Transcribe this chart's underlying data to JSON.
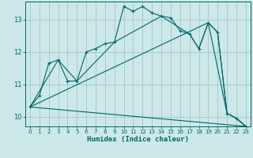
{
  "xlabel": "Humidex (Indice chaleur)",
  "bg_color": "#cce8e8",
  "grid_color": "#aacccc",
  "line_color": "#006666",
  "xlim": [
    -0.5,
    23.5
  ],
  "ylim": [
    9.7,
    13.55
  ],
  "yticks": [
    10,
    11,
    12,
    13
  ],
  "xticks": [
    0,
    1,
    2,
    3,
    4,
    5,
    6,
    7,
    8,
    9,
    10,
    11,
    12,
    13,
    14,
    15,
    16,
    17,
    18,
    19,
    20,
    21,
    22,
    23
  ],
  "curve1_x": [
    0,
    1,
    2,
    3,
    4,
    5,
    6,
    7,
    8,
    9,
    10,
    11,
    12,
    13,
    14,
    15,
    16,
    17,
    18,
    19,
    20,
    21,
    22,
    23
  ],
  "curve1_y": [
    10.3,
    10.65,
    11.65,
    11.75,
    11.1,
    11.1,
    12.0,
    12.1,
    12.25,
    12.3,
    13.4,
    13.25,
    13.4,
    13.2,
    13.1,
    13.05,
    12.65,
    12.55,
    12.1,
    12.9,
    12.6,
    10.1,
    9.95,
    9.7
  ],
  "curve2_x": [
    0,
    3,
    5,
    9,
    14,
    17,
    18,
    19,
    21,
    22,
    23
  ],
  "curve2_y": [
    10.3,
    11.75,
    11.1,
    12.3,
    13.1,
    12.55,
    12.1,
    12.9,
    10.1,
    9.95,
    9.7
  ],
  "curve3_x": [
    0,
    19,
    20,
    21,
    22,
    23
  ],
  "curve3_y": [
    10.3,
    12.9,
    12.6,
    10.1,
    9.95,
    9.7
  ],
  "curve4_x": [
    0,
    23
  ],
  "curve4_y": [
    10.3,
    9.7
  ]
}
